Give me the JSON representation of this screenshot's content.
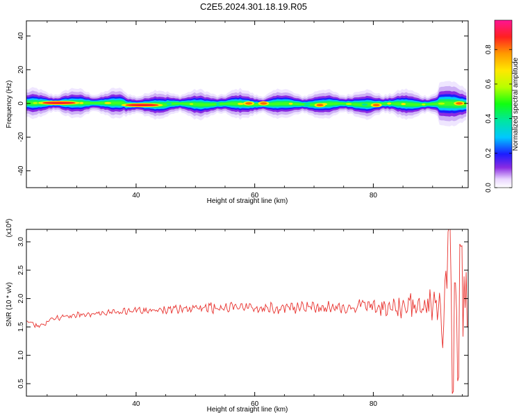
{
  "page_title": "C2E5.2024.301.18.19.R05",
  "chart_data": [
    {
      "type": "heatmap",
      "xlabel": "Height of straight line (km)",
      "ylabel": "Frequency (Hz)",
      "xlim": [
        21.5,
        96
      ],
      "ylim": [
        -50,
        49
      ],
      "x_ticks": [
        40,
        60,
        80
      ],
      "y_ticks": [
        40,
        20,
        0,
        -20,
        -40
      ],
      "x_tick_labels": [
        "40",
        "60",
        "80"
      ],
      "y_tick_labels": [
        "40",
        "20",
        "0",
        "-20",
        "-40"
      ],
      "colorbar": {
        "label": "Normalized spectral amplitude",
        "range": [
          0,
          0.97
        ],
        "ticks": [
          0.0,
          0.2,
          0.4,
          0.6,
          0.8
        ],
        "tick_labels": [
          "0.0",
          "0.2",
          "0.4",
          "0.6",
          "0.8"
        ]
      },
      "hot_spots": [
        {
          "x": 27,
          "y": 0.3,
          "amp": 0.95
        },
        {
          "x": 41,
          "y": -1.0,
          "amp": 0.92
        },
        {
          "x": 59,
          "y": 0,
          "amp": 0.85
        },
        {
          "x": 61.5,
          "y": 0,
          "amp": 0.85
        },
        {
          "x": 71,
          "y": -1.0,
          "amp": 0.7
        },
        {
          "x": 80.5,
          "y": -1.0,
          "amp": 0.75
        },
        {
          "x": 94.5,
          "y": 0,
          "amp": 0.8
        }
      ]
    },
    {
      "type": "line",
      "xlabel": "Height of straight line (km)",
      "ylabel": "SNR (10 * v/v)",
      "y_multiplier": "(x10^4)",
      "xlim": [
        21.5,
        96
      ],
      "ylim": [
        0.28,
        3.22
      ],
      "x_ticks": [
        40,
        60,
        80
      ],
      "y_ticks": [
        0.5,
        1.0,
        1.5,
        2.0,
        2.5,
        3.0
      ],
      "x_tick_labels": [
        "40",
        "60",
        "80"
      ],
      "y_tick_labels": [
        "0.5",
        "1.0",
        "1.5",
        "2.0",
        "2.5",
        "3.0"
      ],
      "series": [
        {
          "trend": [
            [
              21.5,
              1.62
            ],
            [
              23.5,
              1.5
            ],
            [
              26,
              1.64
            ],
            [
              30,
              1.72
            ],
            [
              40,
              1.78
            ],
            [
              50,
              1.82
            ],
            [
              60,
              1.84
            ],
            [
              70,
              1.85
            ],
            [
              80,
              1.86
            ],
            [
              88,
              1.86
            ],
            [
              96,
              1.88
            ]
          ],
          "noise": [
            [
              21.5,
              0.04
            ],
            [
              30,
              0.05
            ],
            [
              45,
              0.07
            ],
            [
              55,
              0.1
            ],
            [
              75,
              0.1
            ],
            [
              84,
              0.18
            ],
            [
              90,
              0.3
            ],
            [
              93,
              1.0
            ],
            [
              96,
              0.7
            ]
          ],
          "peaks": [
            {
              "x": 92.8,
              "y": 3.2
            },
            {
              "x": 93.4,
              "y": 0.35
            },
            {
              "x": 94.3,
              "y": 0.6
            },
            {
              "x": 94.8,
              "y": 2.9
            }
          ],
          "color": "#e8302c"
        }
      ]
    }
  ]
}
